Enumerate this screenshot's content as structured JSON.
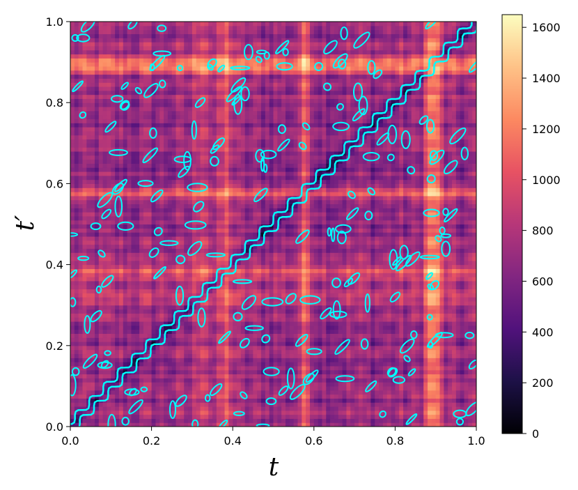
{
  "chart_data": {
    "type": "heatmap",
    "title": "",
    "xlabel": "t",
    "ylabel": "t′",
    "xlim": [
      0.0,
      1.0
    ],
    "ylim": [
      0.0,
      1.0
    ],
    "x_ticks": [
      "0.0",
      "0.2",
      "0.4",
      "0.6",
      "0.8",
      "1.0"
    ],
    "y_ticks": [
      "0.0",
      "0.2",
      "0.4",
      "0.6",
      "0.8",
      "1.0"
    ],
    "colormap": "magma",
    "colorbar_range": [
      0,
      1650
    ],
    "colorbar_ticks": [
      "0",
      "200",
      "400",
      "600",
      "800",
      "1000",
      "1200",
      "1400",
      "1600"
    ],
    "contour_color": "#00ffff",
    "grid": false,
    "highlight_bands": [
      0.385,
      0.885,
      0.325,
      0.58,
      0.9
    ],
    "symmetric_about_diagonal": true
  }
}
